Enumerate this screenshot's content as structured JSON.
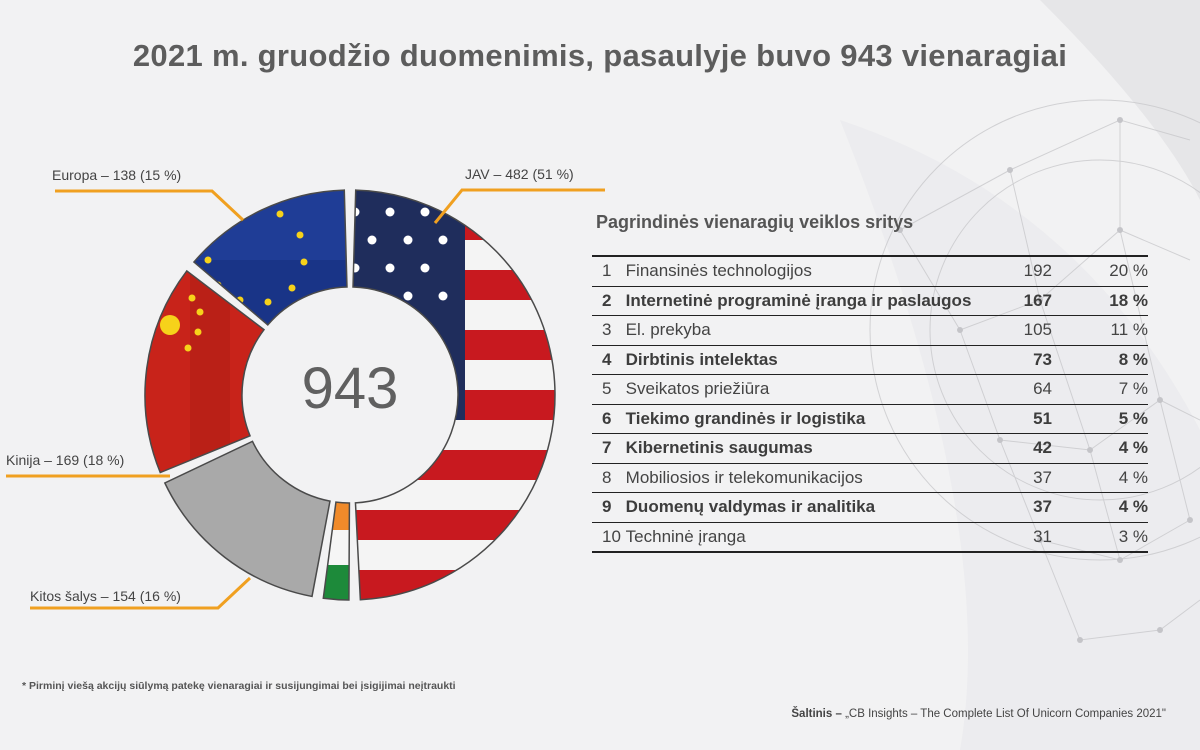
{
  "title": "2021 m. gruodžio duomenimis, pasaulyje buvo 943 vienaragiai",
  "chart_data": {
    "type": "pie",
    "donut": true,
    "total": 943,
    "center_label": "943",
    "slices": [
      {
        "name": "JAV",
        "value": 482,
        "percent": 51,
        "label": "JAV – 482 (51 %)",
        "fill": "us-flag"
      },
      {
        "name": "Indija",
        "value": 0,
        "percent": 0,
        "label": "",
        "fill": "india-flag"
      },
      {
        "name": "Kitos šalys",
        "value": 154,
        "percent": 16,
        "label": "Kitos šalys – 154 (16 %)",
        "fill": "#a9a9a9"
      },
      {
        "name": "Kinija",
        "value": 169,
        "percent": 18,
        "label": "Kinija – 169 (18 %)",
        "fill": "china-flag"
      },
      {
        "name": "Europa",
        "value": 138,
        "percent": 15,
        "label": "Europa – 138 (15 %)",
        "fill": "eu-flag"
      }
    ]
  },
  "sectors": {
    "title": "Pagrindinės vienaragių veiklos sritys",
    "rows": [
      {
        "rank": "1",
        "name": "Finansinės technologijos",
        "count": "192",
        "pct": "20 %",
        "bold": false
      },
      {
        "rank": "2",
        "name": "Internetinė programinė įranga ir paslaugos",
        "count": "167",
        "pct": "18 %",
        "bold": true
      },
      {
        "rank": "3",
        "name": "El. prekyba",
        "count": "105",
        "pct": "11 %",
        "bold": false
      },
      {
        "rank": "4",
        "name": "Dirbtinis intelektas",
        "count": "73",
        "pct": "8 %",
        "bold": true
      },
      {
        "rank": "5",
        "name": "Sveikatos priežiūra",
        "count": "64",
        "pct": "7 %",
        "bold": false
      },
      {
        "rank": "6",
        "name": "Tiekimo grandinės ir logistika",
        "count": "51",
        "pct": "5 %",
        "bold": true
      },
      {
        "rank": "7",
        "name": "Kibernetinis saugumas",
        "count": "42",
        "pct": "4 %",
        "bold": true
      },
      {
        "rank": "8",
        "name": "Mobiliosios ir telekomunikacijos",
        "count": "37",
        "pct": "4 %",
        "bold": false
      },
      {
        "rank": "9",
        "name": "Duomenų valdymas ir analitika",
        "count": "37",
        "pct": "4 %",
        "bold": true
      },
      {
        "rank": "10",
        "name": "Techninė įranga",
        "count": "31",
        "pct": "3 %",
        "bold": false
      }
    ]
  },
  "footnote": "* Pirminį viešą akcijų siūlymą patekę vienaragiai ir susijungimai bei įsigijimai neįtraukti",
  "source": {
    "label": "Šaltinis –",
    "text": "„CB Insights – The Complete List Of Unicorn Companies 2021\""
  },
  "colors": {
    "accent_orange": "#f0a020",
    "title_gray": "#5d5d5d",
    "other_gray": "#a9a9a9"
  }
}
